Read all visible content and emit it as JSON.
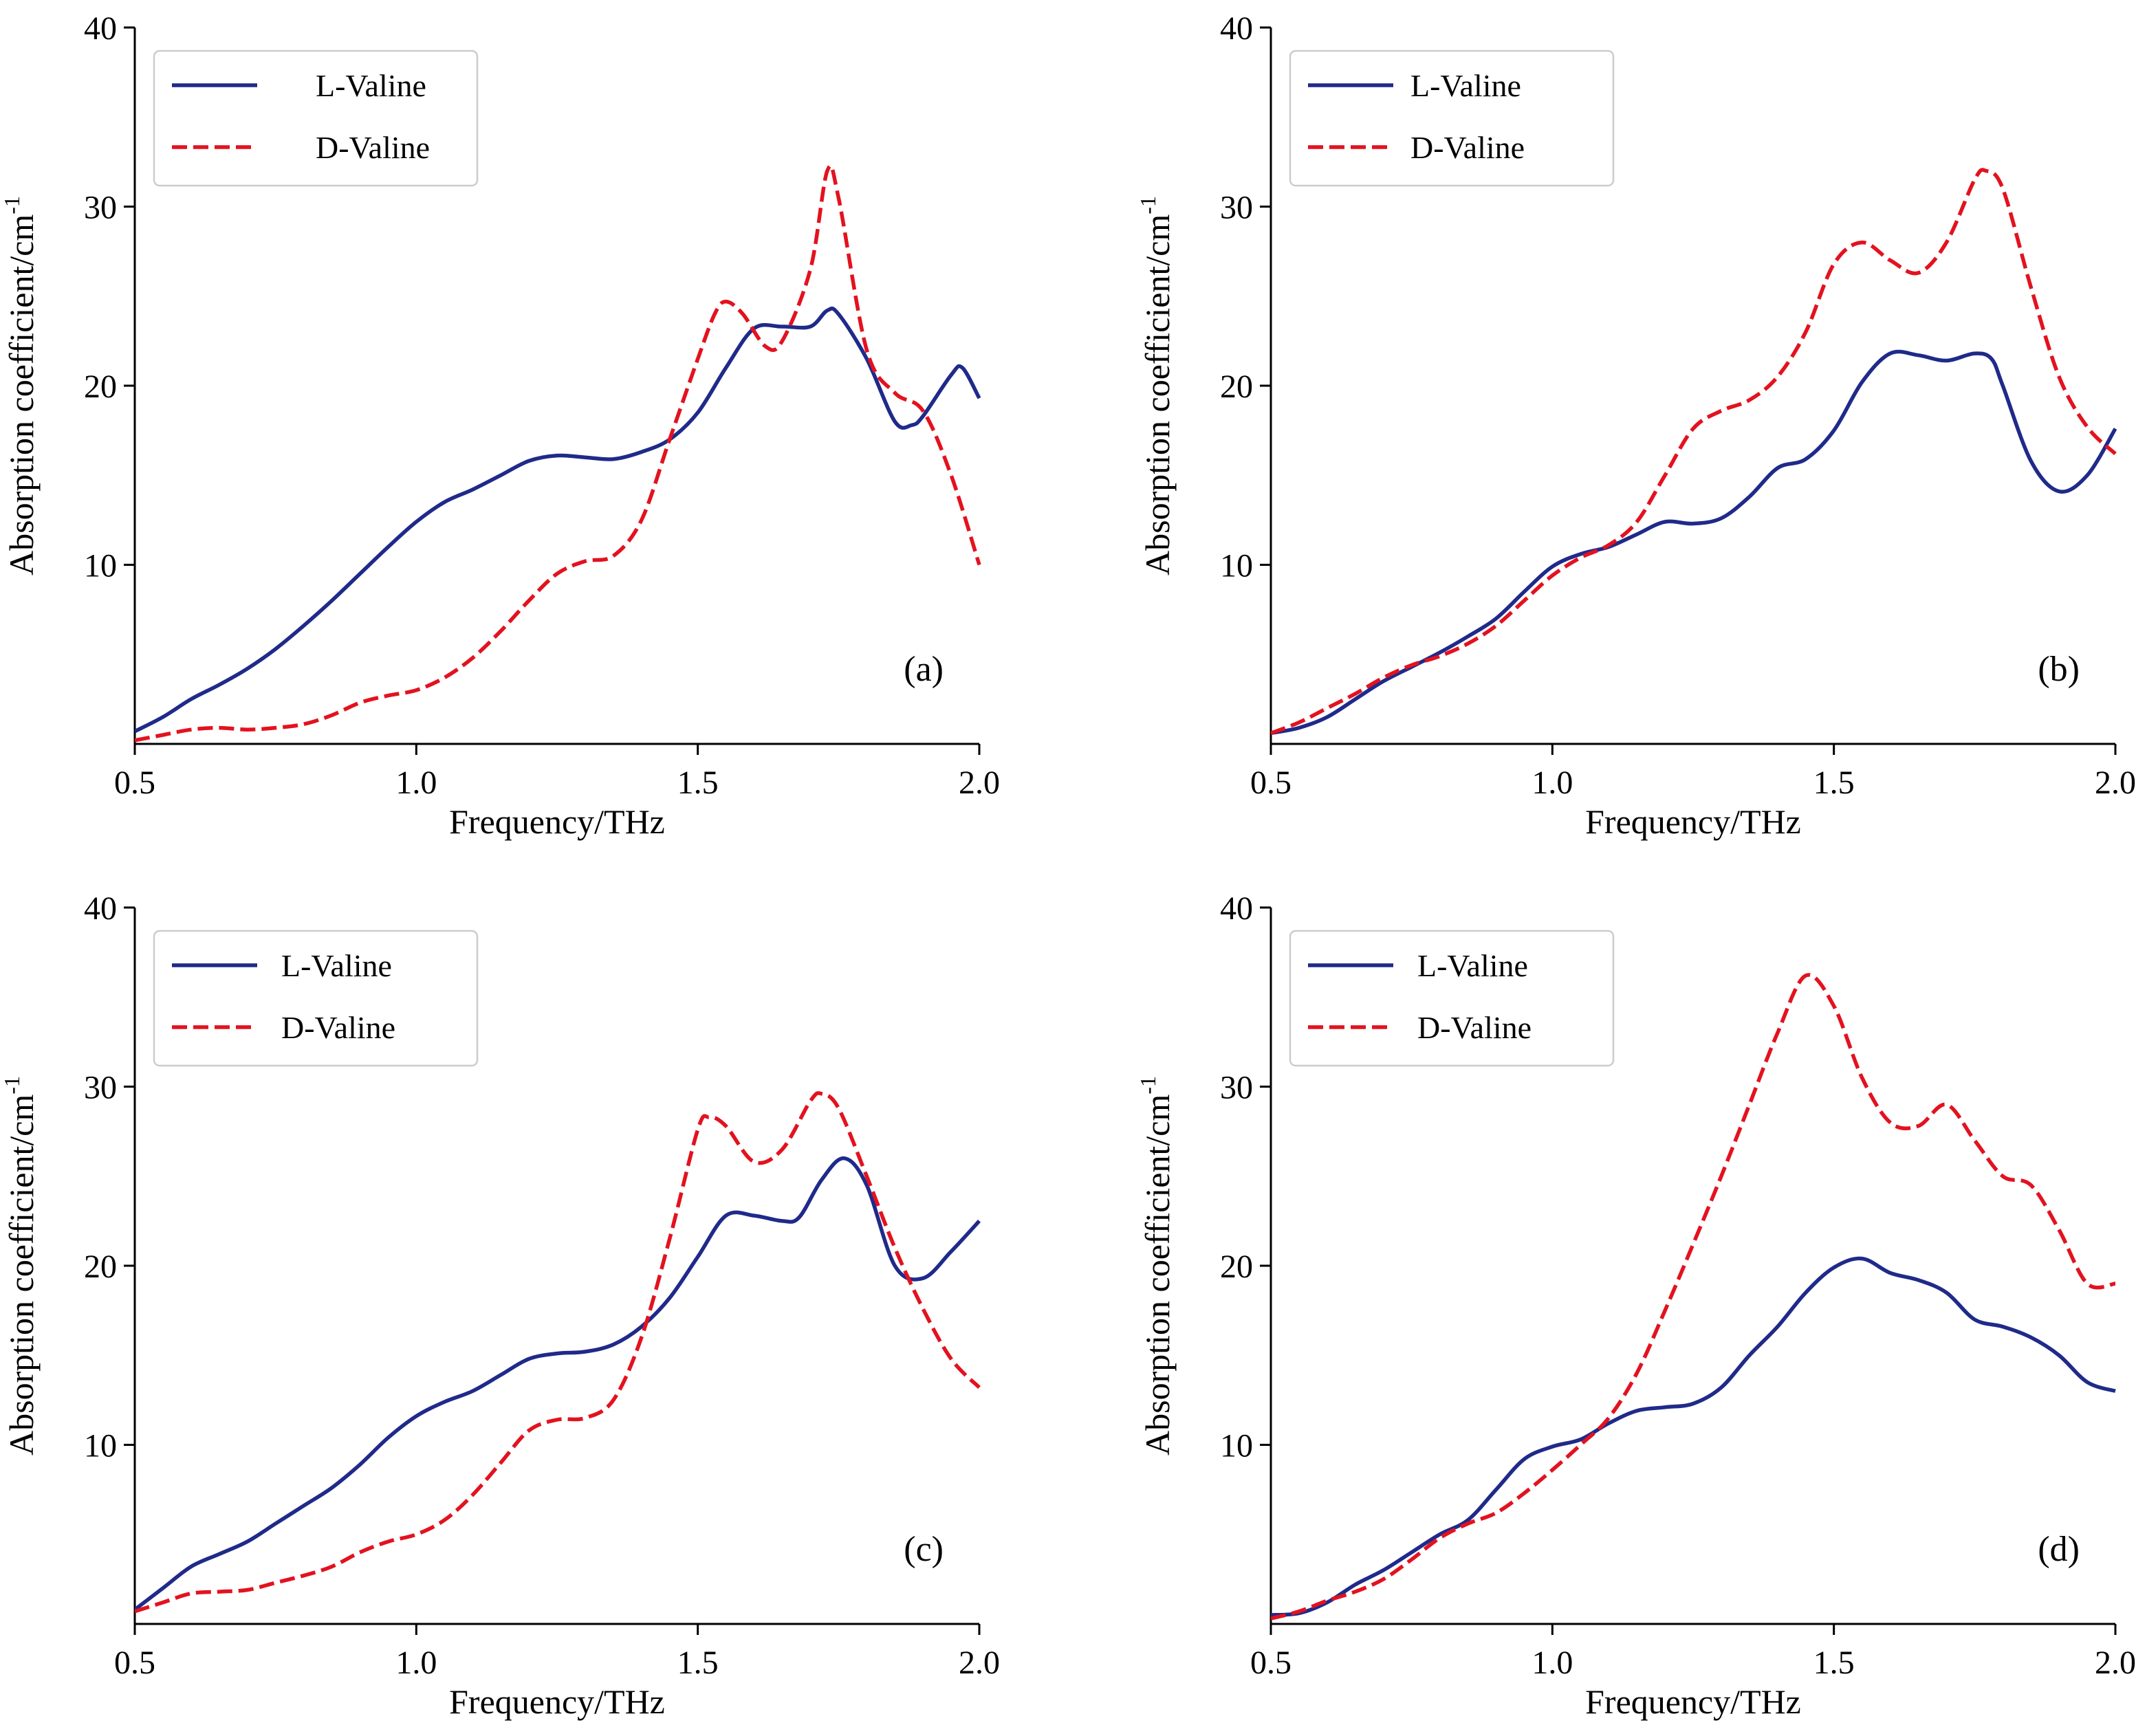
{
  "figure": {
    "colors": {
      "l_valine": "#1f2a8a",
      "d_valine": "#e3121f",
      "axis": "#000000",
      "legend_border": "#cccccc"
    }
  },
  "chart_data": [
    {
      "type": "line",
      "panel_label": "(a)",
      "xlabel": "Frequency/THz",
      "ylabel": "Absorption coefficient/cm",
      "ylabel_sup": "-1",
      "xlim": [
        0.5,
        2.0
      ],
      "ylim": [
        0,
        40
      ],
      "xticks": [
        "0.5",
        "1.0",
        "1.5",
        "2.0"
      ],
      "yticks": [
        "10",
        "20",
        "30",
        "40"
      ],
      "legend_position": "top-left",
      "grid": false,
      "series": [
        {
          "name": "L-Valine",
          "style": "solid",
          "x": [
            0.5,
            0.55,
            0.6,
            0.65,
            0.7,
            0.75,
            0.8,
            0.85,
            0.9,
            0.95,
            1.0,
            1.05,
            1.1,
            1.15,
            1.2,
            1.25,
            1.3,
            1.35,
            1.4,
            1.45,
            1.5,
            1.55,
            1.6,
            1.65,
            1.7,
            1.73,
            1.75,
            1.8,
            1.85,
            1.88,
            1.9,
            1.95,
            1.97,
            2.0
          ],
          "y": [
            0.7,
            1.5,
            2.5,
            3.3,
            4.2,
            5.3,
            6.6,
            8.0,
            9.5,
            11.0,
            12.4,
            13.5,
            14.2,
            15.0,
            15.8,
            16.1,
            16.0,
            15.9,
            16.3,
            17.0,
            18.5,
            21.0,
            23.2,
            23.3,
            23.3,
            24.2,
            24.0,
            21.5,
            18.0,
            17.8,
            18.3,
            20.6,
            21.0,
            19.3
          ]
        },
        {
          "name": "D-Valine",
          "style": "dashed",
          "x": [
            0.5,
            0.55,
            0.6,
            0.65,
            0.7,
            0.75,
            0.8,
            0.85,
            0.9,
            0.95,
            1.0,
            1.05,
            1.1,
            1.15,
            1.2,
            1.25,
            1.3,
            1.35,
            1.4,
            1.45,
            1.5,
            1.53,
            1.55,
            1.58,
            1.62,
            1.65,
            1.7,
            1.73,
            1.75,
            1.8,
            1.85,
            1.9,
            1.95,
            2.0
          ],
          "y": [
            0.2,
            0.5,
            0.8,
            0.9,
            0.8,
            0.9,
            1.1,
            1.6,
            2.3,
            2.7,
            3.0,
            3.7,
            4.8,
            6.3,
            8.0,
            9.5,
            10.2,
            10.5,
            12.5,
            17.0,
            21.5,
            24.0,
            24.7,
            24.0,
            22.2,
            22.5,
            26.5,
            32.0,
            30.5,
            22.0,
            19.6,
            18.6,
            15.0,
            10.0
          ]
        }
      ]
    },
    {
      "type": "line",
      "panel_label": "(b)",
      "xlabel": "Frequency/THz",
      "ylabel": "Absorption coefficient/cm",
      "ylabel_sup": "-1",
      "xlim": [
        0.5,
        2.0
      ],
      "ylim": [
        0,
        40
      ],
      "xticks": [
        "0.5",
        "1.0",
        "1.5",
        "2.0"
      ],
      "yticks": [
        "10",
        "20",
        "30",
        "40"
      ],
      "legend_position": "top-left",
      "grid": false,
      "series": [
        {
          "name": "L-Valine",
          "style": "solid",
          "x": [
            0.5,
            0.55,
            0.6,
            0.65,
            0.7,
            0.75,
            0.8,
            0.85,
            0.9,
            0.95,
            1.0,
            1.05,
            1.1,
            1.15,
            1.2,
            1.25,
            1.3,
            1.35,
            1.4,
            1.45,
            1.5,
            1.55,
            1.6,
            1.65,
            1.7,
            1.75,
            1.78,
            1.8,
            1.85,
            1.9,
            1.95,
            2.0
          ],
          "y": [
            0.6,
            0.9,
            1.5,
            2.5,
            3.5,
            4.3,
            5.1,
            6.0,
            7.0,
            8.5,
            9.9,
            10.6,
            11.0,
            11.7,
            12.4,
            12.3,
            12.6,
            13.8,
            15.4,
            15.9,
            17.5,
            20.2,
            21.8,
            21.7,
            21.4,
            21.8,
            21.5,
            20.0,
            15.8,
            14.1,
            15.0,
            17.6
          ]
        },
        {
          "name": "D-Valine",
          "style": "dashed",
          "x": [
            0.5,
            0.55,
            0.6,
            0.65,
            0.7,
            0.75,
            0.8,
            0.85,
            0.9,
            0.95,
            1.0,
            1.05,
            1.1,
            1.15,
            1.2,
            1.25,
            1.3,
            1.35,
            1.4,
            1.45,
            1.5,
            1.55,
            1.6,
            1.65,
            1.7,
            1.75,
            1.77,
            1.8,
            1.85,
            1.9,
            1.95,
            2.0
          ],
          "y": [
            0.6,
            1.2,
            2.0,
            2.8,
            3.7,
            4.4,
            4.9,
            5.6,
            6.6,
            8.0,
            9.4,
            10.4,
            11.1,
            12.4,
            15.0,
            17.6,
            18.6,
            19.2,
            20.5,
            23.0,
            26.8,
            28.0,
            27.0,
            26.3,
            28.0,
            31.5,
            32.0,
            31.0,
            25.5,
            20.5,
            17.7,
            16.2
          ]
        }
      ]
    },
    {
      "type": "line",
      "panel_label": "(c)",
      "xlabel": "Frequency/THz",
      "ylabel": "Absorption coefficient/cm",
      "ylabel_sup": "-1",
      "xlim": [
        0.5,
        2.0
      ],
      "ylim": [
        0,
        40
      ],
      "xticks": [
        "0.5",
        "1.0",
        "1.5",
        "2.0"
      ],
      "yticks": [
        "10",
        "20",
        "30",
        "40"
      ],
      "legend_position": "top-left",
      "grid": false,
      "series": [
        {
          "name": "L-Valine",
          "style": "solid",
          "x": [
            0.5,
            0.55,
            0.6,
            0.65,
            0.7,
            0.75,
            0.8,
            0.85,
            0.9,
            0.95,
            1.0,
            1.05,
            1.1,
            1.15,
            1.2,
            1.25,
            1.3,
            1.35,
            1.4,
            1.45,
            1.5,
            1.55,
            1.6,
            1.65,
            1.68,
            1.72,
            1.76,
            1.8,
            1.85,
            1.9,
            1.95,
            2.0
          ],
          "y": [
            0.8,
            2.0,
            3.2,
            3.9,
            4.6,
            5.6,
            6.6,
            7.6,
            8.9,
            10.4,
            11.6,
            12.4,
            13.0,
            13.9,
            14.8,
            15.1,
            15.2,
            15.6,
            16.6,
            18.2,
            20.5,
            22.8,
            22.8,
            22.5,
            22.7,
            24.8,
            26.0,
            24.5,
            20.0,
            19.3,
            20.8,
            22.5
          ]
        },
        {
          "name": "D-Valine",
          "style": "dashed",
          "x": [
            0.5,
            0.55,
            0.6,
            0.65,
            0.7,
            0.75,
            0.8,
            0.85,
            0.9,
            0.95,
            1.0,
            1.05,
            1.1,
            1.15,
            1.2,
            1.25,
            1.3,
            1.35,
            1.4,
            1.45,
            1.5,
            1.52,
            1.55,
            1.6,
            1.65,
            1.7,
            1.72,
            1.75,
            1.8,
            1.85,
            1.9,
            1.95,
            2.0
          ],
          "y": [
            0.7,
            1.2,
            1.7,
            1.8,
            1.9,
            2.3,
            2.7,
            3.2,
            4.0,
            4.6,
            5.0,
            5.8,
            7.2,
            9.0,
            10.8,
            11.4,
            11.5,
            12.5,
            16.0,
            21.5,
            27.6,
            28.3,
            27.8,
            25.8,
            26.5,
            29.2,
            29.6,
            28.8,
            25.0,
            21.0,
            17.6,
            14.8,
            13.2
          ]
        }
      ]
    },
    {
      "type": "line",
      "panel_label": "(d)",
      "xlabel": "Frequency/THz",
      "ylabel": "Absorption coefficient/cm",
      "ylabel_sup": "-1",
      "xlim": [
        0.5,
        2.0
      ],
      "ylim": [
        0,
        40
      ],
      "xticks": [
        "0.5",
        "1.0",
        "1.5",
        "2.0"
      ],
      "yticks": [
        "10",
        "20",
        "30",
        "40"
      ],
      "legend_position": "top-left",
      "grid": false,
      "series": [
        {
          "name": "L-Valine",
          "style": "solid",
          "x": [
            0.5,
            0.55,
            0.6,
            0.65,
            0.7,
            0.75,
            0.8,
            0.85,
            0.9,
            0.95,
            1.0,
            1.05,
            1.1,
            1.15,
            1.2,
            1.25,
            1.3,
            1.35,
            1.4,
            1.45,
            1.5,
            1.55,
            1.6,
            1.65,
            1.7,
            1.75,
            1.8,
            1.85,
            1.9,
            1.95,
            2.0
          ],
          "y": [
            0.5,
            0.6,
            1.2,
            2.2,
            3.0,
            4.0,
            5.0,
            5.8,
            7.5,
            9.2,
            9.9,
            10.3,
            11.2,
            11.9,
            12.1,
            12.3,
            13.2,
            15.0,
            16.6,
            18.5,
            19.9,
            20.4,
            19.6,
            19.2,
            18.5,
            17.0,
            16.6,
            16.0,
            15.0,
            13.5,
            13.0
          ]
        },
        {
          "name": "D-Valine",
          "style": "dashed",
          "x": [
            0.5,
            0.55,
            0.6,
            0.65,
            0.7,
            0.75,
            0.8,
            0.85,
            0.9,
            0.95,
            1.0,
            1.05,
            1.1,
            1.15,
            1.2,
            1.25,
            1.3,
            1.35,
            1.4,
            1.45,
            1.5,
            1.55,
            1.6,
            1.65,
            1.7,
            1.75,
            1.8,
            1.85,
            1.9,
            1.95,
            2.0
          ],
          "y": [
            0.3,
            0.7,
            1.3,
            1.8,
            2.5,
            3.6,
            4.8,
            5.6,
            6.2,
            7.3,
            8.6,
            10.0,
            11.5,
            14.0,
            17.5,
            21.2,
            25.0,
            29.0,
            33.0,
            36.2,
            34.5,
            30.5,
            28.0,
            27.8,
            29.0,
            27.0,
            25.0,
            24.5,
            22.0,
            19.0,
            19.0
          ]
        }
      ]
    }
  ]
}
